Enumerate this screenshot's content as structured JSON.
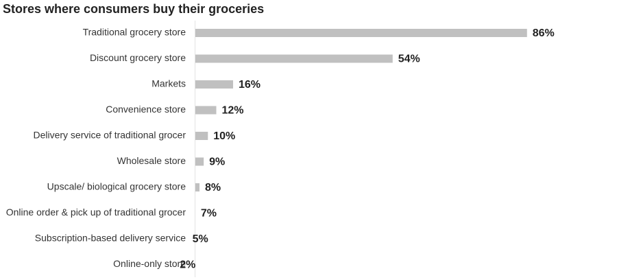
{
  "chart_data": {
    "type": "bar",
    "orientation": "horizontal",
    "title": "Stores where consumers buy their groceries",
    "categories": [
      "Traditional grocery store",
      "Discount grocery store",
      "Markets",
      "Convenience store",
      "Delivery service of traditional grocer",
      "Wholesale store",
      "Upscale/ biological grocery store",
      "Online order & pick up of traditional grocer",
      "Subscription-based delivery service",
      "Online-only store"
    ],
    "values": [
      86,
      54,
      16,
      12,
      10,
      9,
      8,
      7,
      5,
      2
    ],
    "value_labels": [
      "86%",
      "54%",
      "16%",
      "12%",
      "10%",
      "9%",
      "8%",
      "7%",
      "5%",
      "2%"
    ],
    "colors": [
      "#c0c0c0",
      "#c0c0c0",
      "#c0c0c0",
      "#c0c0c0",
      "#c0c0c0",
      "#c0c0c0",
      "#c0c0c0",
      "#c0c0c0",
      "#c0c0c0",
      "#9b3243"
    ]
  }
}
